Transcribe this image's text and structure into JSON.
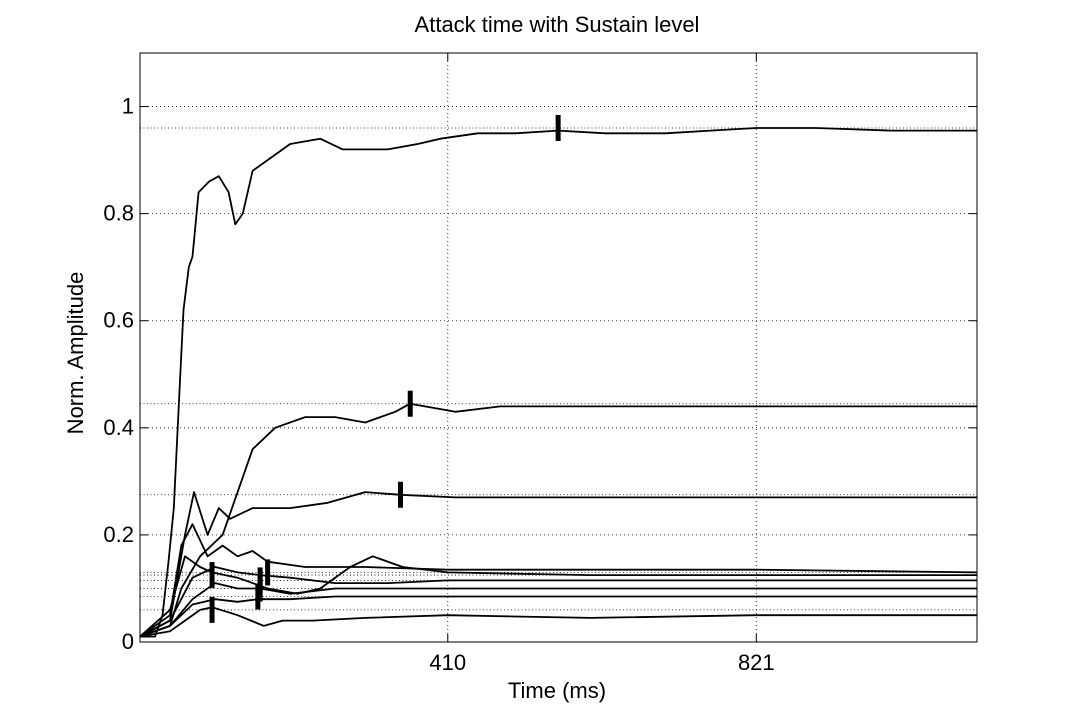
{
  "chart_data": {
    "type": "line",
    "title": "Attack time with Sustain level",
    "xlabel": "Time (ms)",
    "ylabel": "Norm. Amplitude",
    "xlim": [
      0,
      1115
    ],
    "ylim": [
      0,
      1.1
    ],
    "xticks": [
      410,
      821
    ],
    "xtick_labels": [
      "410",
      "821"
    ],
    "yticks": [
      0,
      0.2,
      0.4,
      0.6,
      0.8,
      1
    ],
    "ytick_labels": [
      "0",
      "0.2",
      "0.4",
      "0.6",
      "0.8",
      "1"
    ],
    "grid": true,
    "line_color": "#000000",
    "series": [
      {
        "sustain": 0.96,
        "attack_time": 557,
        "points": [
          [
            0,
            0.01
          ],
          [
            20,
            0.01
          ],
          [
            30,
            0.05
          ],
          [
            38,
            0.15
          ],
          [
            45,
            0.25
          ],
          [
            52,
            0.45
          ],
          [
            58,
            0.62
          ],
          [
            65,
            0.7
          ],
          [
            70,
            0.72
          ],
          [
            78,
            0.84
          ],
          [
            92,
            0.86
          ],
          [
            105,
            0.87
          ],
          [
            118,
            0.84
          ],
          [
            127,
            0.78
          ],
          [
            137,
            0.8
          ],
          [
            150,
            0.88
          ],
          [
            170,
            0.9
          ],
          [
            200,
            0.93
          ],
          [
            240,
            0.94
          ],
          [
            270,
            0.92
          ],
          [
            300,
            0.92
          ],
          [
            330,
            0.92
          ],
          [
            370,
            0.93
          ],
          [
            400,
            0.94
          ],
          [
            450,
            0.95
          ],
          [
            500,
            0.95
          ],
          [
            557,
            0.955
          ],
          [
            620,
            0.95
          ],
          [
            700,
            0.95
          ],
          [
            760,
            0.955
          ],
          [
            821,
            0.96
          ],
          [
            900,
            0.96
          ],
          [
            1000,
            0.955
          ],
          [
            1115,
            0.955
          ]
        ]
      },
      {
        "sustain": 0.445,
        "attack_time": 360,
        "points": [
          [
            0,
            0.01
          ],
          [
            40,
            0.03
          ],
          [
            55,
            0.1
          ],
          [
            80,
            0.16
          ],
          [
            110,
            0.2
          ],
          [
            130,
            0.28
          ],
          [
            150,
            0.36
          ],
          [
            180,
            0.4
          ],
          [
            220,
            0.42
          ],
          [
            260,
            0.42
          ],
          [
            300,
            0.41
          ],
          [
            340,
            0.43
          ],
          [
            360,
            0.445
          ],
          [
            420,
            0.43
          ],
          [
            480,
            0.44
          ],
          [
            560,
            0.44
          ],
          [
            650,
            0.44
          ],
          [
            821,
            0.44
          ],
          [
            1000,
            0.44
          ],
          [
            1115,
            0.44
          ]
        ]
      },
      {
        "sustain": 0.275,
        "attack_time": 347,
        "points": [
          [
            0,
            0.01
          ],
          [
            40,
            0.04
          ],
          [
            60,
            0.2
          ],
          [
            72,
            0.28
          ],
          [
            90,
            0.2
          ],
          [
            105,
            0.25
          ],
          [
            120,
            0.23
          ],
          [
            150,
            0.25
          ],
          [
            200,
            0.25
          ],
          [
            250,
            0.26
          ],
          [
            300,
            0.28
          ],
          [
            347,
            0.275
          ],
          [
            420,
            0.27
          ],
          [
            560,
            0.27
          ],
          [
            821,
            0.27
          ],
          [
            1115,
            0.27
          ]
        ]
      },
      {
        "sustain": 0.13,
        "attack_time": 170,
        "points": [
          [
            0,
            0.01
          ],
          [
            40,
            0.05
          ],
          [
            55,
            0.18
          ],
          [
            70,
            0.22
          ],
          [
            90,
            0.16
          ],
          [
            110,
            0.18
          ],
          [
            130,
            0.16
          ],
          [
            150,
            0.17
          ],
          [
            170,
            0.15
          ],
          [
            220,
            0.14
          ],
          [
            300,
            0.14
          ],
          [
            410,
            0.135
          ],
          [
            600,
            0.135
          ],
          [
            821,
            0.135
          ],
          [
            1115,
            0.13
          ]
        ]
      },
      {
        "sustain": 0.125,
        "attack_time": 96,
        "points": [
          [
            0,
            0.01
          ],
          [
            40,
            0.06
          ],
          [
            60,
            0.16
          ],
          [
            80,
            0.14
          ],
          [
            96,
            0.13
          ],
          [
            130,
            0.12
          ],
          [
            170,
            0.1
          ],
          [
            210,
            0.09
          ],
          [
            240,
            0.1
          ],
          [
            280,
            0.14
          ],
          [
            310,
            0.16
          ],
          [
            350,
            0.14
          ],
          [
            410,
            0.13
          ],
          [
            600,
            0.125
          ],
          [
            821,
            0.125
          ],
          [
            1115,
            0.125
          ]
        ]
      },
      {
        "sustain": 0.115,
        "attack_time": 160,
        "points": [
          [
            0,
            0.01
          ],
          [
            40,
            0.04
          ],
          [
            70,
            0.12
          ],
          [
            100,
            0.14
          ],
          [
            130,
            0.13
          ],
          [
            160,
            0.125
          ],
          [
            200,
            0.12
          ],
          [
            260,
            0.11
          ],
          [
            330,
            0.11
          ],
          [
            410,
            0.115
          ],
          [
            600,
            0.115
          ],
          [
            821,
            0.115
          ],
          [
            1115,
            0.115
          ]
        ]
      },
      {
        "sustain": 0.1,
        "attack_time": 160,
        "points": [
          [
            0,
            0.01
          ],
          [
            40,
            0.03
          ],
          [
            70,
            0.08
          ],
          [
            100,
            0.11
          ],
          [
            130,
            0.1
          ],
          [
            160,
            0.1
          ],
          [
            200,
            0.09
          ],
          [
            260,
            0.1
          ],
          [
            330,
            0.1
          ],
          [
            500,
            0.1
          ],
          [
            821,
            0.1
          ],
          [
            1115,
            0.1
          ]
        ]
      },
      {
        "sustain": 0.085,
        "attack_time": 157,
        "points": [
          [
            0,
            0.01
          ],
          [
            40,
            0.03
          ],
          [
            70,
            0.07
          ],
          [
            100,
            0.08
          ],
          [
            130,
            0.075
          ],
          [
            157,
            0.08
          ],
          [
            200,
            0.08
          ],
          [
            260,
            0.085
          ],
          [
            330,
            0.085
          ],
          [
            500,
            0.085
          ],
          [
            821,
            0.085
          ],
          [
            1115,
            0.085
          ]
        ]
      },
      {
        "sustain": 0.06,
        "attack_time": 96,
        "points": [
          [
            0,
            0.01
          ],
          [
            40,
            0.02
          ],
          [
            60,
            0.04
          ],
          [
            80,
            0.06
          ],
          [
            96,
            0.065
          ],
          [
            130,
            0.05
          ],
          [
            165,
            0.03
          ],
          [
            190,
            0.04
          ],
          [
            230,
            0.04
          ],
          [
            300,
            0.045
          ],
          [
            410,
            0.05
          ],
          [
            600,
            0.045
          ],
          [
            821,
            0.05
          ],
          [
            1115,
            0.05
          ]
        ]
      }
    ]
  }
}
